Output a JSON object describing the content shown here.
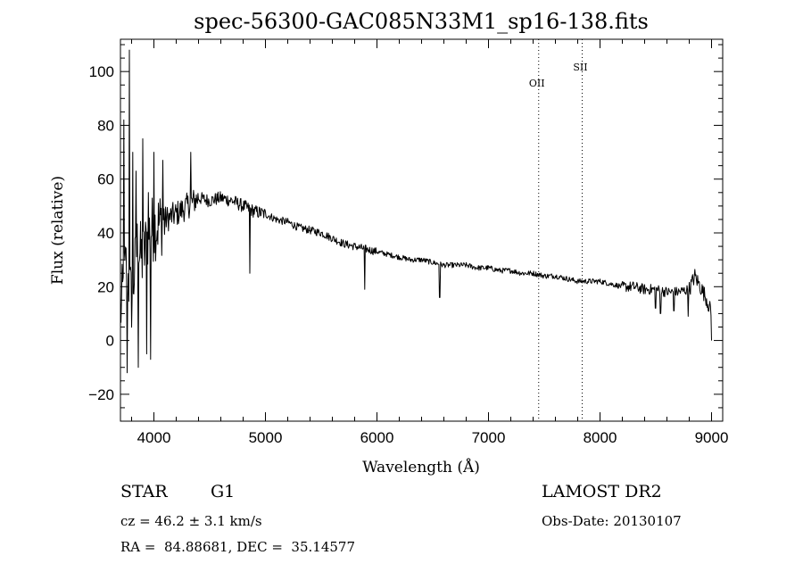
{
  "chart_data": {
    "type": "line",
    "title": "spec-56300-GAC085N33M1_sp16-138.fits",
    "xlabel": "Wavelength (Å)",
    "ylabel": "Flux (relative)",
    "xlim": [
      3700,
      9100
    ],
    "ylim": [
      -30,
      112
    ],
    "xticks": [
      4000,
      5000,
      6000,
      7000,
      8000,
      9000
    ],
    "xtick_labels": [
      "4000",
      "5000",
      "6000",
      "7000",
      "8000",
      "9000"
    ],
    "yticks": [
      -20,
      0,
      20,
      40,
      60,
      80,
      100
    ],
    "ytick_labels": [
      "−20",
      "0",
      "20",
      "40",
      "60",
      "80",
      "100"
    ],
    "grid": false,
    "series": [
      {
        "x": [
          3700,
          3750,
          3800,
          3850,
          3900,
          3950,
          4000,
          4100,
          4200,
          4300,
          4400,
          4500,
          4600,
          4700,
          4800,
          4900,
          5000,
          5100,
          5200,
          5300,
          5400,
          5500,
          5600,
          5700,
          5800,
          5900,
          6000,
          6100,
          6200,
          6300,
          6400,
          6500,
          6600,
          6700,
          6800,
          6900,
          7000,
          7100,
          7200,
          7300,
          7400,
          7500,
          7600,
          7700,
          7800,
          7900,
          8000,
          8100,
          8200,
          8300,
          8400,
          8500,
          8600,
          8700,
          8800,
          8850,
          8900,
          8950,
          9000
        ],
        "y": [
          10,
          28,
          15,
          35,
          30,
          40,
          42,
          45,
          47,
          50,
          53,
          52,
          53,
          52,
          50,
          48,
          47,
          45,
          44,
          42,
          41,
          40,
          38,
          36,
          35,
          34,
          33,
          32,
          31,
          30,
          30,
          29,
          28,
          28,
          28,
          27,
          27,
          26,
          26,
          25,
          25,
          24,
          24,
          23,
          22,
          22,
          22,
          21,
          20,
          20,
          19,
          19,
          18,
          18,
          19,
          24,
          20,
          16,
          10
        ]
      }
    ],
    "absorption_dips": [
      {
        "x": 3760,
        "y": -12
      },
      {
        "x": 3860,
        "y": -10
      },
      {
        "x": 3935,
        "y": -5
      },
      {
        "x": 3970,
        "y": -7
      },
      {
        "x": 4860,
        "y": 25
      },
      {
        "x": 5890,
        "y": 19
      },
      {
        "x": 6563,
        "y": 16
      },
      {
        "x": 8498,
        "y": 12
      },
      {
        "x": 8542,
        "y": 10
      },
      {
        "x": 8662,
        "y": 11
      },
      {
        "x": 8790,
        "y": 9
      },
      {
        "x": 9000,
        "y": 0
      }
    ],
    "emission_spikes": [
      {
        "x": 3730,
        "y": 82
      },
      {
        "x": 3780,
        "y": 108
      },
      {
        "x": 3810,
        "y": 70
      },
      {
        "x": 3840,
        "y": 63
      },
      {
        "x": 3900,
        "y": 75
      },
      {
        "x": 3950,
        "y": 55
      },
      {
        "x": 4000,
        "y": 70
      },
      {
        "x": 4080,
        "y": 67
      },
      {
        "x": 4330,
        "y": 70
      }
    ],
    "annotations": [
      {
        "label": "OII",
        "x": 7450
      },
      {
        "label": "SII",
        "x": 7840
      }
    ]
  },
  "info": {
    "object_class": "STAR",
    "subclass": "G1",
    "survey": "LAMOST DR2",
    "cz": "cz = 46.2 ± 3.1 km/s",
    "obs_date": "Obs-Date: 20130107",
    "coords": "RA =  84.88681, DEC =  35.14577"
  }
}
